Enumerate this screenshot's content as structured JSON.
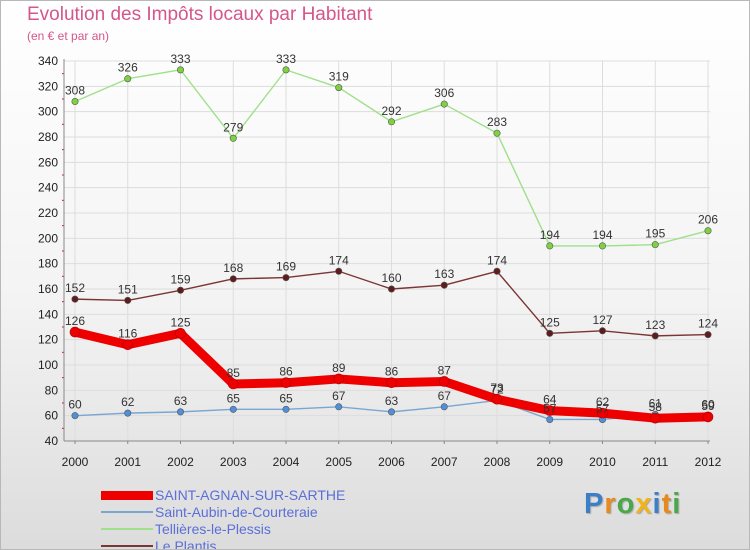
{
  "header": {
    "title": "Evolution des Impôts locaux par Habitant",
    "subtitle": "(en € et par an)"
  },
  "logo": {
    "text": "Proxiti"
  },
  "colors": {
    "grid": "#dddddd",
    "axis_text": "#222222",
    "tick_mark": "#c8104f"
  },
  "chart_data": {
    "type": "line",
    "title": "Evolution des Impôts locaux par Habitant",
    "subtitle": "(en € et par an)",
    "xlabel": "",
    "ylabel": "",
    "x": [
      "2000",
      "2001",
      "2002",
      "2003",
      "2004",
      "2005",
      "2006",
      "2007",
      "2008",
      "2009",
      "2010",
      "2011",
      "2012"
    ],
    "ylim": [
      40,
      340
    ],
    "yticks": [
      40,
      60,
      80,
      100,
      120,
      140,
      160,
      180,
      200,
      220,
      240,
      260,
      280,
      300,
      320,
      340
    ],
    "grid": true,
    "legend_position": "bottom-left",
    "series": [
      {
        "name": "SAINT-AGNAN-SUR-SARTHE",
        "values": [
          126,
          116,
          125,
          85,
          86,
          89,
          86,
          87,
          73,
          64,
          62,
          58,
          59
        ],
        "labels": [
          "126",
          "116",
          "125",
          "85",
          "86",
          "89",
          "86",
          "87",
          "73",
          "64",
          "62",
          "58",
          "59"
        ],
        "color": "#ee0000",
        "marker_color": "#ee0000"
      },
      {
        "name": "Saint-Aubin-de-Courteraie",
        "values": [
          60,
          62,
          63,
          65,
          65,
          67,
          63,
          67,
          72,
          57,
          57,
          61,
          60
        ],
        "labels": [
          "60",
          "62",
          "63",
          "65",
          "65",
          "67",
          "63",
          "67",
          "72",
          "57",
          "57",
          "61",
          "60"
        ],
        "color": "#7ba6d2",
        "marker_color": "#4f90d9"
      },
      {
        "name": "Tellières-le-Plessis",
        "values": [
          308,
          326,
          333,
          279,
          333,
          319,
          292,
          306,
          283,
          194,
          194,
          195,
          206
        ],
        "labels": [
          "308",
          "326",
          "333",
          "279",
          "333",
          "319",
          "292",
          "306",
          "283",
          "194",
          "194",
          "195",
          "206"
        ],
        "color": "#9fe08a",
        "marker_color": "#7ed13f"
      },
      {
        "name": "Le Plantis",
        "values": [
          152,
          151,
          159,
          168,
          169,
          174,
          160,
          163,
          174,
          125,
          127,
          123,
          124
        ],
        "labels": [
          "152",
          "151",
          "159",
          "168",
          "169",
          "174",
          "160",
          "163",
          "174",
          "125",
          "127",
          "123",
          "124"
        ],
        "color": "#7a3535",
        "marker_color": "#5e1d1d"
      }
    ]
  }
}
